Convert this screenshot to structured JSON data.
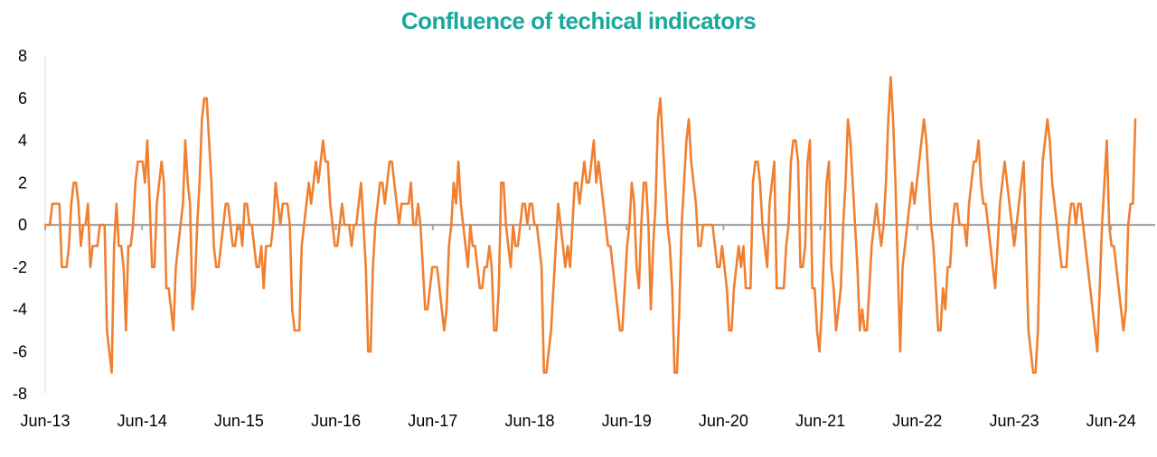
{
  "chart_data": {
    "type": "line",
    "title": "Confluence of techical indicators",
    "xlabel": "",
    "ylabel": "",
    "ylim": [
      -8,
      8
    ],
    "y_ticks": [
      "8",
      "6",
      "4",
      "2",
      "0",
      "-2",
      "-4",
      "-6",
      "-8"
    ],
    "x_tick_labels": [
      "Jun-13",
      "Jun-14",
      "Jun-15",
      "Jun-16",
      "Jun-17",
      "Jun-18",
      "Jun-19",
      "Jun-20",
      "Jun-21",
      "Jun-22",
      "Jun-23",
      "Jun-24"
    ],
    "x_range": [
      "2013-06",
      "2024-10"
    ],
    "grid": false,
    "zero_line": true,
    "line_color": "#f08030",
    "zero_line_color": "#a6a6a6",
    "title_color": "#1aa89c",
    "series": [
      {
        "values": [
          0,
          0,
          0,
          1,
          1,
          1,
          1,
          -2,
          -2,
          -2,
          -1,
          1,
          2,
          2,
          1,
          -1,
          0,
          0,
          1,
          -2,
          -1,
          -1,
          -1,
          0,
          0,
          0,
          -5,
          -6,
          -7,
          -1,
          1,
          -1,
          -1,
          -2,
          -5,
          -1,
          -1,
          0,
          2,
          3,
          3,
          3,
          2,
          4,
          1,
          -2,
          -2,
          1,
          2,
          3,
          2,
          -3,
          -3,
          -4,
          -5,
          -2,
          -1,
          0,
          1,
          4,
          2,
          1,
          -4,
          -3,
          0,
          2,
          5,
          6,
          6,
          4,
          2,
          -1,
          -2,
          -2,
          -1,
          0,
          1,
          1,
          0,
          -1,
          -1,
          0,
          0,
          -1,
          1,
          1,
          0,
          0,
          -1,
          -2,
          -2,
          -1,
          -3,
          -1,
          -1,
          -1,
          0,
          2,
          1,
          0,
          1,
          1,
          1,
          0,
          -4,
          -5,
          -5,
          -5,
          -1,
          0,
          1,
          2,
          1,
          2,
          3,
          2,
          3,
          4,
          3,
          3,
          1,
          0,
          -1,
          -1,
          0,
          1,
          0,
          0,
          0,
          -1,
          0,
          0,
          1,
          2,
          0,
          -2,
          -6,
          -6,
          -2,
          0,
          1,
          2,
          2,
          1,
          2,
          3,
          3,
          2,
          1,
          0,
          1,
          1,
          1,
          1,
          2,
          0,
          0,
          1,
          0,
          -2,
          -4,
          -4,
          -3,
          -2,
          -2,
          -2,
          -3,
          -4,
          -5,
          -4,
          -1,
          0,
          2,
          1,
          3,
          1,
          0,
          -1,
          -2,
          0,
          -1,
          -1,
          -2,
          -3,
          -3,
          -2,
          -2,
          -1,
          -2,
          -5,
          -5,
          -3,
          2,
          2,
          0,
          -1,
          -2,
          0,
          -1,
          -1,
          0,
          1,
          1,
          0,
          1,
          1,
          0,
          0,
          -1,
          -2,
          -7,
          -7,
          -6,
          -5,
          -3,
          -1,
          1,
          0,
          -1,
          -2,
          -1,
          -2,
          0,
          2,
          2,
          1,
          2,
          3,
          2,
          2,
          3,
          4,
          2,
          3,
          2,
          1,
          0,
          -1,
          -1,
          -2,
          -3,
          -4,
          -5,
          -5,
          -3,
          -1,
          0,
          2,
          1,
          -2,
          -3,
          0,
          2,
          2,
          0,
          -4,
          -1,
          1,
          5,
          6,
          4,
          2,
          0,
          -1,
          -3,
          -7,
          -7,
          -4,
          0,
          2,
          4,
          5,
          3,
          2,
          1,
          -1,
          -1,
          0,
          0,
          0,
          0,
          0,
          -1,
          -2,
          -2,
          -1,
          -2,
          -3,
          -5,
          -5,
          -3,
          -2,
          -1,
          -2,
          -1,
          -3,
          -3,
          -3,
          2,
          3,
          3,
          2,
          0,
          -1,
          -2,
          1,
          2,
          3,
          -3,
          -3,
          -3,
          -3,
          -1,
          0,
          3,
          4,
          4,
          3,
          -2,
          -2,
          -1,
          3,
          4,
          -3,
          -3,
          -5,
          -6,
          -4,
          -1,
          2,
          3,
          -2,
          -3,
          -5,
          -4,
          -3,
          0,
          2,
          5,
          4,
          2,
          0,
          -2,
          -5,
          -4,
          -5,
          -5,
          -3,
          -1,
          0,
          1,
          0,
          -1,
          0,
          2,
          5,
          7,
          5,
          2,
          -2,
          -6,
          -2,
          -1,
          0,
          1,
          2,
          1,
          2,
          3,
          4,
          5,
          4,
          2,
          0,
          -1,
          -3,
          -5,
          -5,
          -3,
          -4,
          -2,
          -2,
          0,
          1,
          1,
          0,
          0,
          0,
          -1,
          1,
          2,
          3,
          3,
          4,
          2,
          1,
          1,
          0,
          -1,
          -2,
          -3,
          -1,
          1,
          2,
          3,
          2,
          1,
          0,
          -1,
          0,
          1,
          2,
          3,
          -1,
          -5,
          -6,
          -7,
          -7,
          -5,
          0,
          3,
          4,
          5,
          4,
          2,
          1,
          0,
          -1,
          -2,
          -2,
          -2,
          0,
          1,
          1,
          0,
          1,
          1,
          0,
          -1,
          -2,
          -3,
          -4,
          -5,
          -6,
          -3,
          0,
          2,
          4,
          0,
          -1,
          -1,
          -2,
          -3,
          -4,
          -5,
          -4,
          0,
          1,
          1,
          5
        ]
      }
    ]
  }
}
